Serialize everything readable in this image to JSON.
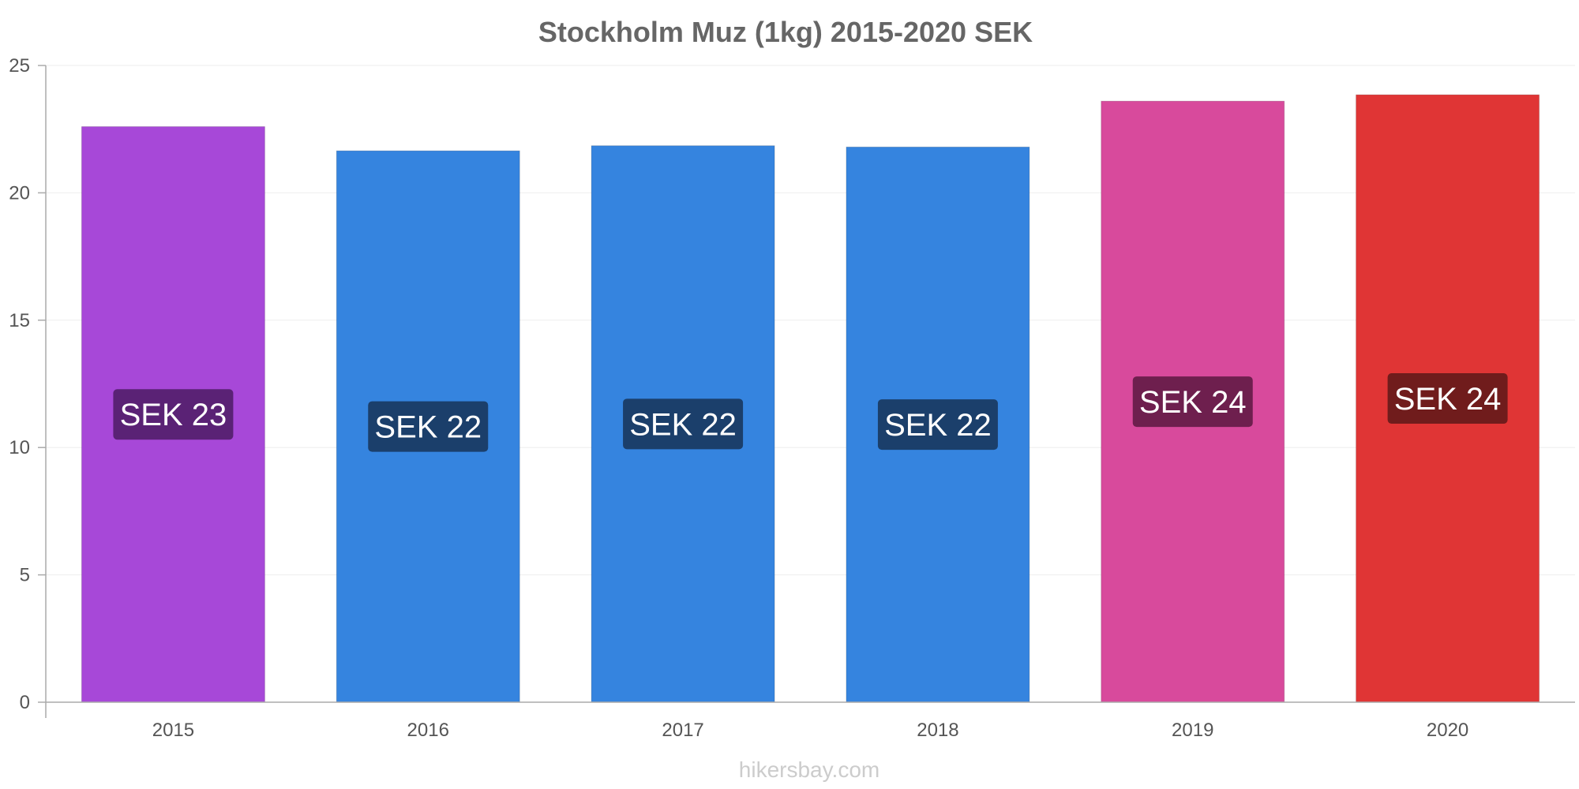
{
  "chart_data": {
    "type": "bar",
    "title": "Stockholm Muz (1kg) 2015-2020 SEK",
    "categories": [
      "2015",
      "2016",
      "2017",
      "2018",
      "2019",
      "2020"
    ],
    "values": [
      22.6,
      21.65,
      21.85,
      21.8,
      23.6,
      23.85
    ],
    "data_labels": [
      "SEK 23",
      "SEK 22",
      "SEK 22",
      "SEK 22",
      "SEK 24",
      "SEK 24"
    ],
    "bar_colors": [
      "#a748d8",
      "#3584df",
      "#3584df",
      "#3584df",
      "#d84a9c",
      "#e03535"
    ],
    "label_box_colors": [
      "#5a2275",
      "#1b3f6b",
      "#1b3f6b",
      "#1b3f6b",
      "#6e1f4e",
      "#701c1c"
    ],
    "ylim": [
      0,
      25
    ],
    "yticks": [
      "0",
      "5",
      "10",
      "15",
      "20",
      "25"
    ],
    "xlabel": "",
    "ylabel": "",
    "grid": true,
    "legend": "none"
  },
  "watermark": "hikersbay.com",
  "colors": {
    "title": "#666666",
    "axis": "#aaaaaa",
    "grid": "#eeeeee",
    "tick_text": "#555555",
    "watermark": "#cccccc"
  }
}
